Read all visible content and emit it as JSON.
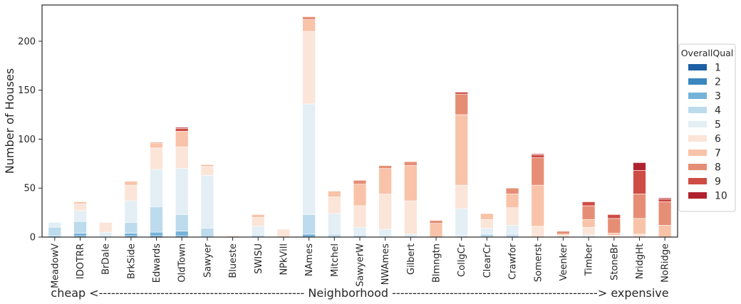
{
  "chart_data": {
    "type": "bar",
    "stacked": true,
    "ylabel": "Number of Houses",
    "xlabel": "cheap <-------------------------------------------------- Neighborhood --------------------------------------------------> expensive",
    "ylim": [
      0,
      237
    ],
    "yticks": [
      0,
      50,
      100,
      150,
      200
    ],
    "grid": false,
    "legend": {
      "title": "OverallQual",
      "placement": "right"
    },
    "categories": [
      "MeadowV",
      "IDOTRR",
      "BrDale",
      "BrkSide",
      "Edwards",
      "OldTown",
      "Sawyer",
      "Blueste",
      "SWISU",
      "NPkVill",
      "NAmes",
      "Mitchel",
      "SawyerW",
      "NWAmes",
      "Gilbert",
      "Blmngtn",
      "CollgCr",
      "ClearCr",
      "Crawfor",
      "Somerst",
      "Veenker",
      "Timber",
      "StoneBr",
      "NridgHt",
      "NoRidge"
    ],
    "series": [
      {
        "name": "1",
        "color": "#1d5fa3",
        "values": [
          0,
          0,
          0,
          0,
          1,
          0,
          0,
          0,
          0,
          0,
          0,
          0,
          0,
          0,
          0,
          0,
          0,
          0,
          0,
          0,
          0,
          0,
          0,
          0,
          0
        ]
      },
      {
        "name": "2",
        "color": "#3a87c0",
        "values": [
          0,
          1,
          0,
          1,
          0,
          1,
          0,
          0,
          0,
          0,
          0,
          0,
          0,
          0,
          0,
          0,
          0,
          0,
          0,
          0,
          0,
          0,
          0,
          0,
          0
        ]
      },
      {
        "name": "3",
        "color": "#75b2d9",
        "values": [
          1,
          3,
          0,
          3,
          4,
          5,
          0,
          0,
          0,
          0,
          3,
          1,
          0,
          0,
          0,
          0,
          0,
          0,
          1,
          0,
          0,
          0,
          0,
          0,
          0
        ]
      },
      {
        "name": "4",
        "color": "#bcdbec",
        "values": [
          9,
          12,
          0,
          11,
          26,
          17,
          9,
          0,
          2,
          0,
          20,
          2,
          2,
          0,
          0,
          0,
          1,
          3,
          2,
          0,
          0,
          0,
          0,
          0,
          0
        ]
      },
      {
        "name": "5",
        "color": "#e3eef5",
        "values": [
          5,
          11,
          5,
          22,
          38,
          47,
          54,
          0,
          9,
          0,
          113,
          21,
          8,
          8,
          3,
          0,
          28,
          6,
          9,
          0,
          0,
          2,
          0,
          0,
          0
        ]
      },
      {
        "name": "6",
        "color": "#fbe4d8",
        "values": [
          0,
          7,
          10,
          16,
          22,
          22,
          9,
          0,
          9,
          8,
          74,
          17,
          22,
          36,
          34,
          0,
          24,
          9,
          18,
          11,
          2,
          8,
          2,
          3,
          0
        ]
      },
      {
        "name": "7",
        "color": "#f8c3a8",
        "values": [
          0,
          2,
          0,
          4,
          5,
          16,
          2,
          1,
          3,
          0,
          12,
          6,
          22,
          26,
          36,
          14,
          72,
          6,
          14,
          42,
          1,
          8,
          2,
          16,
          12
        ]
      },
      {
        "name": "8",
        "color": "#e68e75",
        "values": [
          0,
          0,
          0,
          0,
          1,
          0,
          0,
          0,
          0,
          0,
          3,
          0,
          4,
          3,
          4,
          3,
          21,
          0,
          6,
          28,
          3,
          14,
          15,
          25,
          24
        ]
      },
      {
        "name": "9",
        "color": "#cd4c44",
        "values": [
          0,
          0,
          0,
          0,
          0,
          3,
          0,
          0,
          0,
          0,
          0,
          0,
          0,
          0,
          0,
          0,
          2,
          0,
          0,
          3,
          0,
          4,
          4,
          24,
          3
        ]
      },
      {
        "name": "10",
        "color": "#b0232e",
        "values": [
          0,
          0,
          0,
          0,
          0,
          1,
          0,
          0,
          0,
          0,
          0,
          0,
          0,
          0,
          0,
          0,
          0,
          0,
          0,
          1,
          0,
          0,
          0,
          8,
          1
        ]
      }
    ]
  }
}
